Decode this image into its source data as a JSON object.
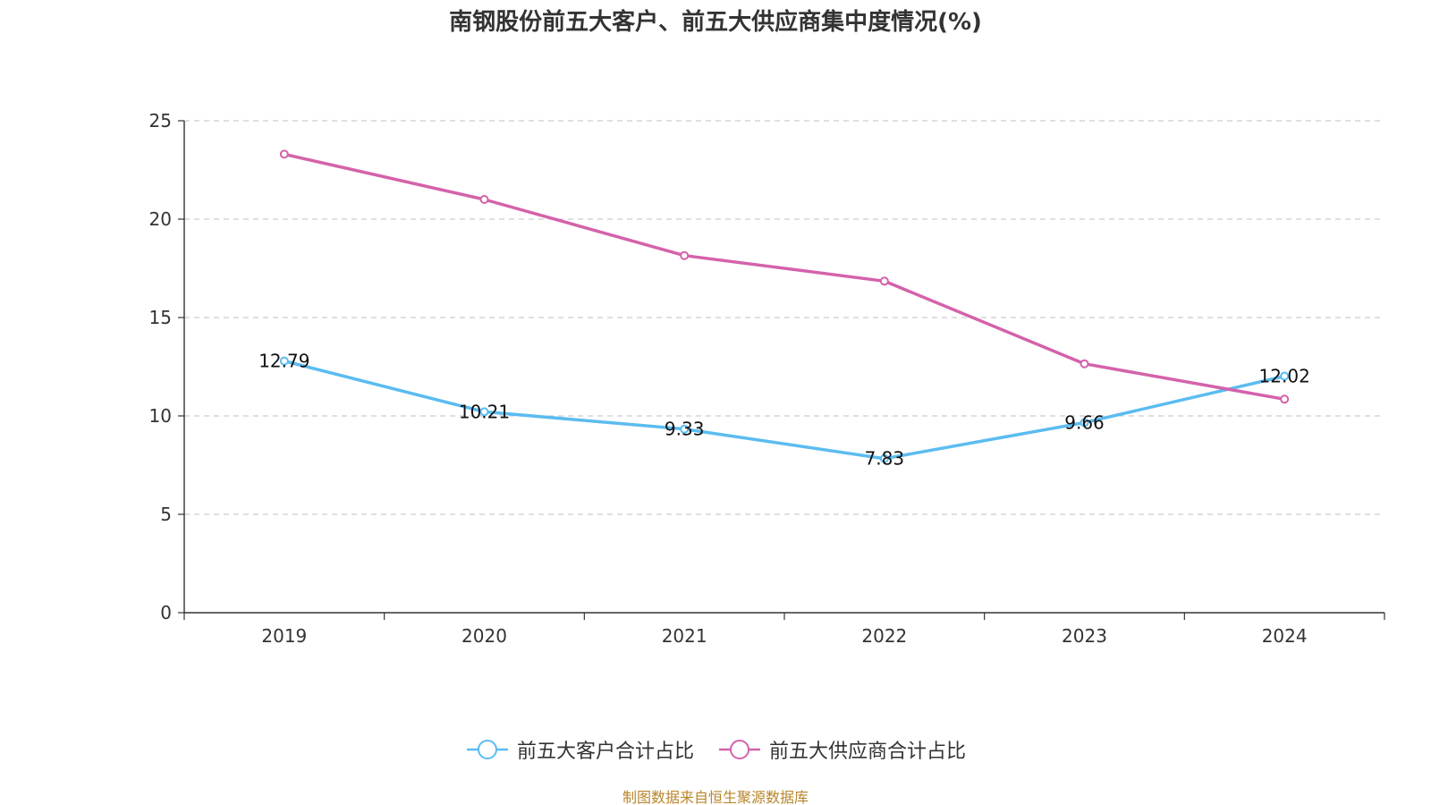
{
  "chart_data": {
    "type": "line",
    "title": "南钢股份前五大客户、前五大供应商集中度情况(%)",
    "categories": [
      "2019",
      "2020",
      "2021",
      "2022",
      "2023",
      "2024"
    ],
    "series": [
      {
        "name": "前五大客户合计占比",
        "color": "#5bbcf0",
        "values": [
          12.79,
          10.21,
          9.33,
          7.83,
          9.66,
          12.02
        ],
        "labels": [
          "12.79",
          "10.21",
          "9.33",
          "7.83",
          "9.66",
          "12.02"
        ],
        "show_labels": true
      },
      {
        "name": "前五大供应商合计占比",
        "color": "#d462aa",
        "values": [
          23.3,
          21.0,
          18.15,
          16.85,
          12.65,
          10.85
        ],
        "show_labels": false
      }
    ],
    "ylim": [
      0,
      25
    ],
    "yticks": [
      0,
      5,
      10,
      15,
      20,
      25
    ],
    "xlabel": "",
    "ylabel": "",
    "grid": true,
    "legend_position": "bottom"
  },
  "source_note": "制图数据来自恒生聚源数据库"
}
